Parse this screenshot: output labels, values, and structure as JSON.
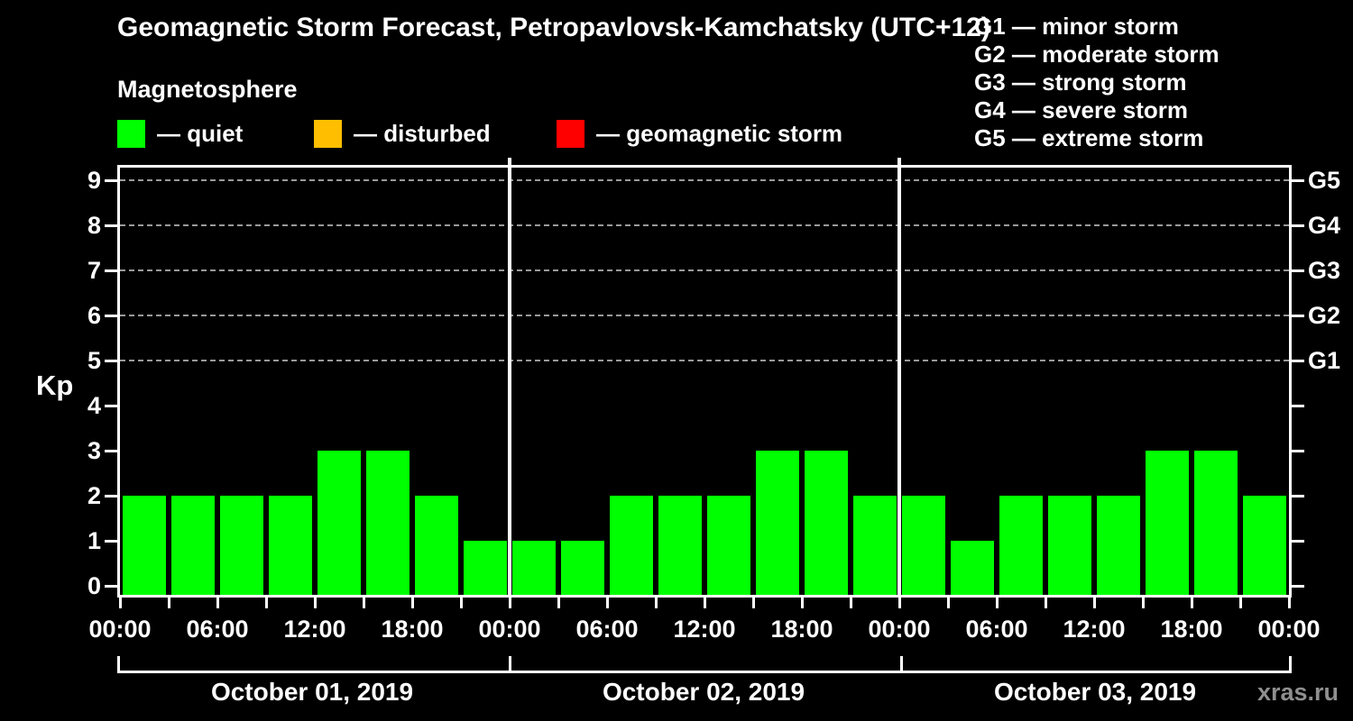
{
  "title": "Geomagnetic Storm Forecast, Petropavlovsk-Kamchatsky (UTC+12)",
  "subtitle": "Magnetosphere",
  "watermark": "xras.ru",
  "colors": {
    "background": "#000000",
    "text": "#ffffff",
    "axis": "#ffffff",
    "gridline": "#9a9a9a",
    "quiet": "#00ff00",
    "disturbed": "#ffbe00",
    "storm": "#ff0000",
    "watermark": "#8f8f8f"
  },
  "legend": [
    {
      "name": "quiet",
      "label": "— quiet",
      "color": "#00ff00"
    },
    {
      "name": "disturbed",
      "label": "— disturbed",
      "color": "#ffbe00"
    },
    {
      "name": "storm",
      "label": "— geomagnetic storm",
      "color": "#ff0000"
    }
  ],
  "g_legend": [
    "G1 — minor storm",
    "G2 — moderate storm",
    "G3 — strong storm",
    "G4 — severe storm",
    "G5 — extreme storm"
  ],
  "chart_data": {
    "type": "bar",
    "title": "Geomagnetic Storm Forecast, Petropavlovsk-Kamchatsky (UTC+12)",
    "subtitle": "Magnetosphere",
    "ylabel": "Kp",
    "ylim": [
      0,
      9.4
    ],
    "yticks": [
      0,
      1,
      2,
      3,
      4,
      5,
      6,
      7,
      8,
      9
    ],
    "gridlines_at": [
      5,
      6,
      7,
      8,
      9
    ],
    "grid": "dashed horizontal at G-storm levels only",
    "legend_position": "top-left row + top-right G-scale list",
    "right_axis": [
      {
        "kp": 5,
        "label": "G1"
      },
      {
        "kp": 6,
        "label": "G2"
      },
      {
        "kp": 7,
        "label": "G3"
      },
      {
        "kp": 8,
        "label": "G4"
      },
      {
        "kp": 9,
        "label": "G5"
      }
    ],
    "x_tick_labels_per_day": [
      "00:00",
      "06:00",
      "12:00",
      "18:00"
    ],
    "x_axis_end_label": "00:00",
    "hours_per_bar": 3,
    "bar_color": "#00ff00",
    "days": [
      {
        "date": "October 01, 2019",
        "values": [
          2,
          2,
          2,
          2,
          3,
          3,
          2,
          1
        ]
      },
      {
        "date": "October 02, 2019",
        "values": [
          1,
          1,
          2,
          2,
          2,
          3,
          3,
          2
        ]
      },
      {
        "date": "October 03, 2019",
        "values": [
          2,
          1,
          2,
          2,
          2,
          3,
          3,
          2
        ]
      }
    ]
  }
}
